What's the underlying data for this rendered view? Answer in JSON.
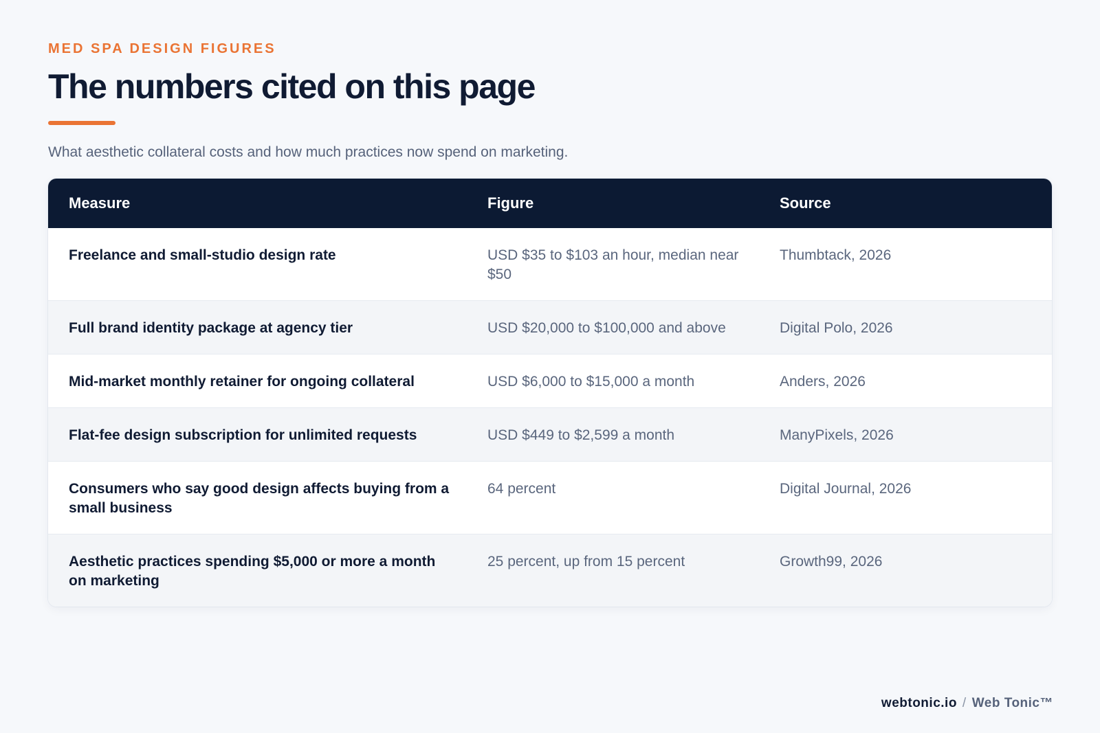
{
  "header": {
    "eyebrow": "MED SPA DESIGN FIGURES",
    "title": "The numbers cited on this page",
    "subtitle": "What aesthetic collateral costs and how much practices now spend on marketing."
  },
  "table": {
    "columns": [
      "Measure",
      "Figure",
      "Source"
    ],
    "rows": [
      {
        "measure": "Freelance and small-studio design rate",
        "figure": "USD $35 to $103 an hour, median near $50",
        "source": "Thumbtack, 2026"
      },
      {
        "measure": "Full brand identity package at agency tier",
        "figure": "USD $20,000 to $100,000 and above",
        "source": "Digital Polo, 2026"
      },
      {
        "measure": "Mid-market monthly retainer for ongoing collateral",
        "figure": "USD $6,000 to $15,000 a month",
        "source": "Anders, 2026"
      },
      {
        "measure": "Flat-fee design subscription for unlimited requests",
        "figure": "USD $449 to $2,599 a month",
        "source": "ManyPixels, 2026"
      },
      {
        "measure": "Consumers who say good design affects buying from a small business",
        "figure": "64 percent",
        "source": "Digital Journal, 2026"
      },
      {
        "measure": "Aesthetic practices spending $5,000 or more a month on marketing",
        "figure": "25 percent, up from 15 percent",
        "source": "Growth99, 2026"
      }
    ]
  },
  "footer": {
    "site": "webtonic.io",
    "separator": "/",
    "brand": "Web Tonic™"
  },
  "colors": {
    "accent": "#ea7434",
    "header_bg": "#0c1a33",
    "page_bg": "#f6f8fb"
  }
}
